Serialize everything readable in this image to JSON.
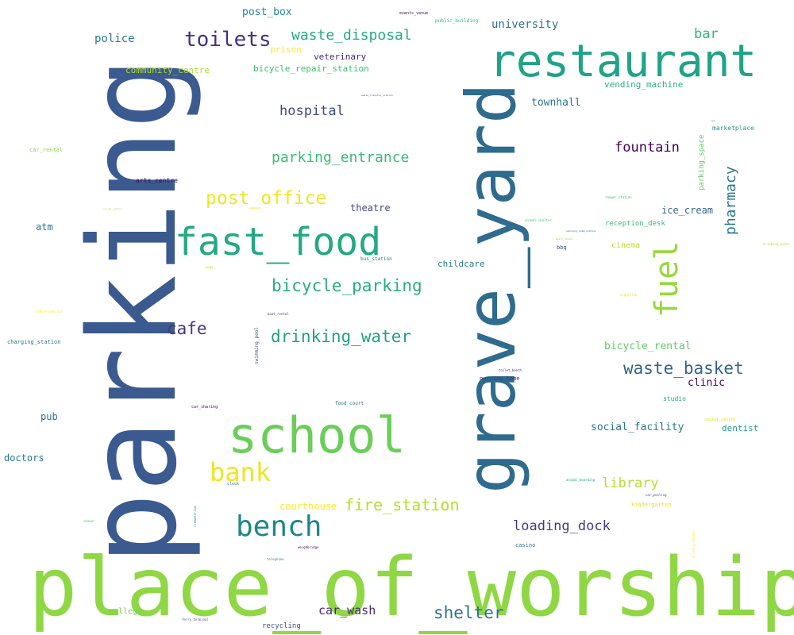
{
  "words": [
    {
      "text": "place_of_worship",
      "color": "#8fd744"
    },
    {
      "text": "parking",
      "color": "#3b5a8f"
    },
    {
      "text": "grave_yard",
      "color": "#2f6b8e"
    },
    {
      "text": "restaurant",
      "color": "#20a386"
    },
    {
      "text": "school",
      "color": "#6ccd5a"
    },
    {
      "text": "fast_food",
      "color": "#23a983"
    },
    {
      "text": "fuel",
      "color": "#98d83e"
    },
    {
      "text": "bench",
      "color": "#1f868b"
    },
    {
      "text": "toilets",
      "color": "#46327e"
    },
    {
      "text": "bank",
      "color": "#f0e51f"
    },
    {
      "text": "shelter",
      "color": "#2c728e"
    },
    {
      "text": "waste_basket",
      "color": "#33638d"
    },
    {
      "text": "bicycle_parking",
      "color": "#27ad81"
    },
    {
      "text": "drinking_water",
      "color": "#1fa187"
    },
    {
      "text": "post_office",
      "color": "#f0e51f"
    },
    {
      "text": "parking_entrance",
      "color": "#3bbb75"
    },
    {
      "text": "cafe",
      "color": "#463480"
    },
    {
      "text": "fire_station",
      "color": "#b5de2b"
    },
    {
      "text": "waste_disposal",
      "color": "#25ab82"
    },
    {
      "text": "loading_dock",
      "color": "#443a83"
    },
    {
      "text": "library",
      "color": "#b5de2b"
    },
    {
      "text": "fountain",
      "color": "#440154"
    },
    {
      "text": "hospital",
      "color": "#3e4a89"
    },
    {
      "text": "pharmacy",
      "color": "#2a788e"
    },
    {
      "text": "car_wash",
      "color": "#482878"
    },
    {
      "text": "bar",
      "color": "#35b779"
    },
    {
      "text": "university",
      "color": "#2c728e"
    },
    {
      "text": "police",
      "color": "#2a788e"
    },
    {
      "text": "post_box",
      "color": "#24868e"
    },
    {
      "text": "social_facility",
      "color": "#2a788e"
    },
    {
      "text": "bicycle_rental",
      "color": "#5ec962"
    },
    {
      "text": "townhall",
      "color": "#2c728e"
    },
    {
      "text": "ice_cream",
      "color": "#31688e"
    },
    {
      "text": "courthouse",
      "color": "#fde725"
    },
    {
      "text": "vending_machine",
      "color": "#29af7f"
    },
    {
      "text": "clinic",
      "color": "#440154"
    },
    {
      "text": "theatre",
      "color": "#3e4989"
    },
    {
      "text": "atm",
      "color": "#2a788e"
    },
    {
      "text": "childcare",
      "color": "#2a788e"
    },
    {
      "text": "doctors",
      "color": "#2a788e"
    },
    {
      "text": "pub",
      "color": "#2c728e"
    },
    {
      "text": "dentist",
      "color": "#1f9e89"
    },
    {
      "text": "community_centre",
      "color": "#addc30"
    },
    {
      "text": "bicycle_repair_station",
      "color": "#3dbc74"
    },
    {
      "text": "veterinary",
      "color": "#482475"
    },
    {
      "text": "prison",
      "color": "#fde725"
    },
    {
      "text": "college",
      "color": "#7ad151"
    },
    {
      "text": "cinema",
      "color": "#c2df23"
    },
    {
      "text": "reception_desk",
      "color": "#3aba76"
    },
    {
      "text": "parking_space",
      "color": "#5ec962"
    },
    {
      "text": "recycling",
      "color": "#3b528b"
    },
    {
      "text": "marketplace",
      "color": "#21918c"
    },
    {
      "text": "studio",
      "color": "#22a884"
    },
    {
      "text": "nursing_home",
      "color": "#443983"
    },
    {
      "text": "car_rental",
      "color": "#86d549"
    },
    {
      "text": "arts_centre",
      "color": "#3e0751"
    },
    {
      "text": "charging_station",
      "color": "#2e6e8e"
    },
    {
      "text": "food_court",
      "color": "#2c718e"
    },
    {
      "text": "swimming_pool",
      "color": "#3b528b"
    },
    {
      "text": "kindergarten",
      "color": "#e5e419"
    },
    {
      "text": "bus_station",
      "color": "#2a788e"
    },
    {
      "text": "casino",
      "color": "#2c728e"
    },
    {
      "text": "bbq",
      "color": "#3e4a89"
    },
    {
      "text": "public_building",
      "color": "#2eb37c"
    },
    {
      "text": "events_venue",
      "color": "#46085c"
    },
    {
      "text": "social_centre",
      "color": "#d8e219"
    },
    {
      "text": "clock",
      "color": "#31688e"
    },
    {
      "text": "car_sharing",
      "color": "#440154"
    },
    {
      "text": "animal_shelter",
      "color": "#4ac16d"
    },
    {
      "text": "animal_boarding",
      "color": "#1fa287"
    },
    {
      "text": "car_pooling",
      "color": "#3b528b"
    },
    {
      "text": "ranger_station",
      "color": "#3fbc73"
    },
    {
      "text": "sanitary_dump_station",
      "color": "#35608d"
    },
    {
      "text": "waste_transfer_station",
      "color": "#3b528b"
    },
    {
      "text": "toilet_booth",
      "color": "#472d7b"
    },
    {
      "text": "nightclub",
      "color": "#e2e418"
    },
    {
      "text": "boat_rental",
      "color": "#414487"
    },
    {
      "text": "weighbridge",
      "color": "#440154"
    },
    {
      "text": "telephone",
      "color": "#21918c"
    },
    {
      "text": "ferry_terminal",
      "color": "#3e4a89"
    },
    {
      "text": "shower",
      "color": "#56c667"
    },
    {
      "text": "spa",
      "color": "#35b779"
    },
    {
      "text": "drinking_water",
      "color": "#b5de2b"
    },
    {
      "text": "crematorium",
      "color": "#1f9a8a"
    },
    {
      "text": "yoga",
      "color": "#b5de2b"
    },
    {
      "text": "driving_school",
      "color": "#fde725"
    },
    {
      "text": "compressed_air",
      "color": "#fde725"
    },
    {
      "text": "social_centre",
      "color": "#a8db34"
    },
    {
      "text": "music_school",
      "color": "#84d44b"
    }
  ]
}
